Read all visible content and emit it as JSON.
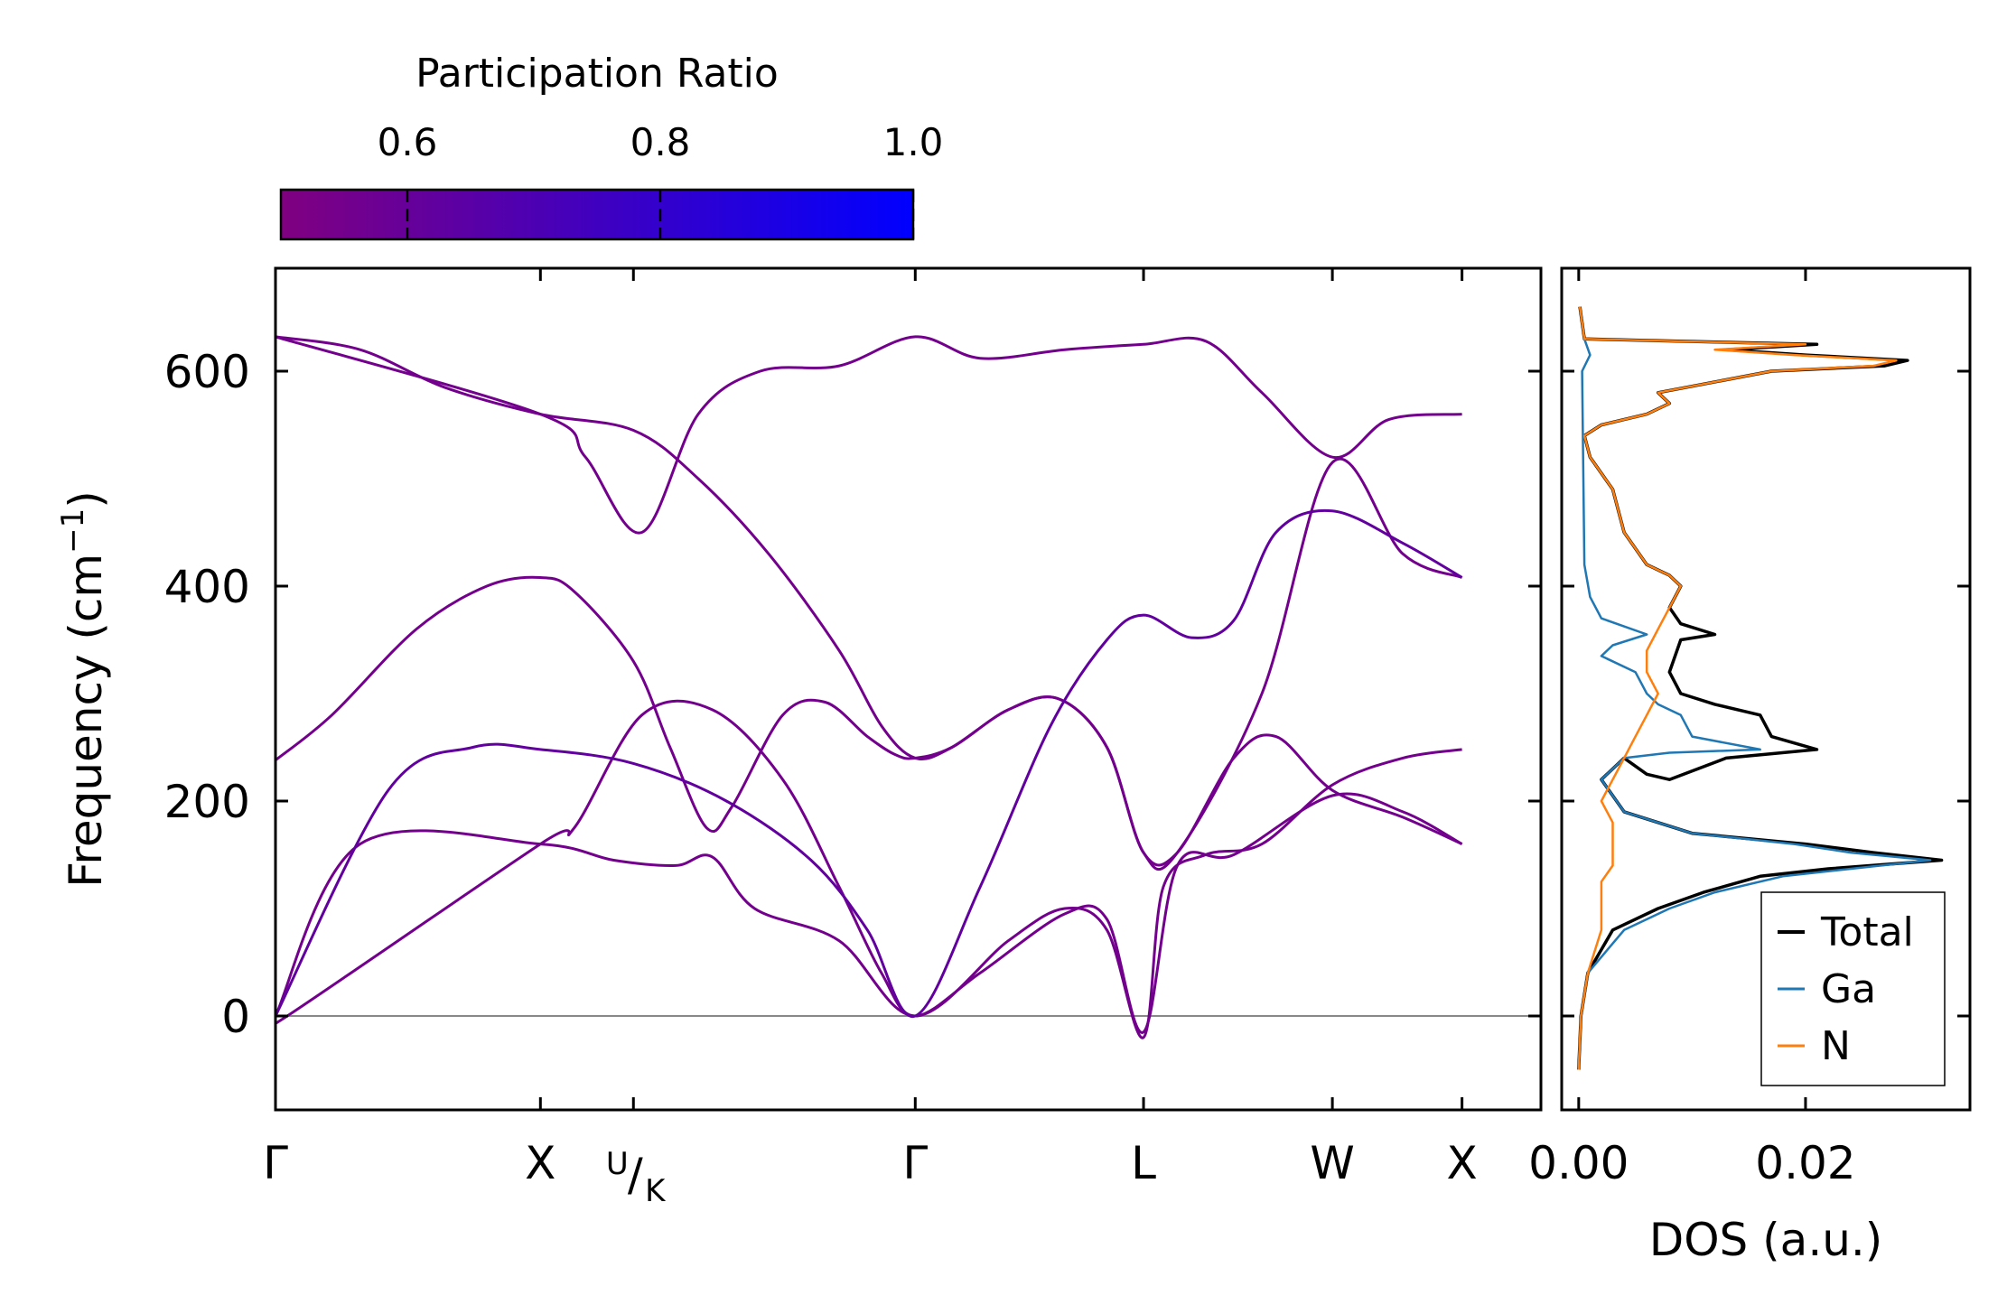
{
  "chart_data": [
    {
      "type": "line",
      "title": "",
      "xlabel": "",
      "ylabel": "Frequency (cm",
      "ylabel_unit_superscript": "−1",
      "ylabel_close": ")",
      "ylim": [
        -85,
        700
      ],
      "yticks": [
        0,
        200,
        400,
        600
      ],
      "ytick_labels": [
        "0",
        "200",
        "400",
        "600"
      ],
      "xlim": [
        0,
        4.49
      ],
      "high_symmetry_points": [
        {
          "label": "Γ",
          "x": 0
        },
        {
          "label": "X",
          "x": 0.94
        },
        {
          "label": "U",
          "label2": "K",
          "x": 1.27,
          "style": "split"
        },
        {
          "label": "Γ",
          "x": 2.27
        },
        {
          "label": "L",
          "x": 3.08
        },
        {
          "label": "W",
          "x": 3.75
        },
        {
          "label": "X",
          "x": 4.21
        }
      ],
      "zero_line": 0,
      "colorbar": {
        "title": "Participation Ratio",
        "range": [
          0.5,
          1.0
        ],
        "ticks": [
          0.6,
          0.8,
          1.0
        ],
        "tick_labels": [
          "0.6",
          "0.8",
          "1.0"
        ],
        "color_low": "#800080",
        "color_high": "#0000ff"
      },
      "bands": [
        {
          "pr": 0.55,
          "points": [
            [
              0,
              632
            ],
            [
              0.3,
              620
            ],
            [
              0.6,
              585
            ],
            [
              0.94,
              560
            ],
            [
              1.27,
              545
            ],
            [
              1.5,
              500
            ],
            [
              1.75,
              430
            ],
            [
              2.0,
              340
            ],
            [
              2.15,
              270
            ],
            [
              2.27,
              240
            ],
            [
              2.4,
              250
            ],
            [
              2.6,
              285
            ],
            [
              2.78,
              295
            ],
            [
              2.95,
              250
            ],
            [
              3.08,
              152
            ],
            [
              3.2,
              152
            ],
            [
              3.5,
              300
            ],
            [
              3.75,
              515
            ],
            [
              4.0,
              430
            ],
            [
              4.21,
              408
            ]
          ]
        },
        {
          "pr": 0.55,
          "points": [
            [
              0,
              238
            ],
            [
              0.2,
              280
            ],
            [
              0.5,
              360
            ],
            [
              0.75,
              400
            ],
            [
              0.94,
              408
            ],
            [
              1.06,
              395
            ],
            [
              1.27,
              330
            ],
            [
              1.4,
              250
            ],
            [
              1.53,
              175
            ],
            [
              1.62,
              195
            ],
            [
              1.8,
              280
            ],
            [
              1.95,
              292
            ],
            [
              2.1,
              260
            ],
            [
              2.2,
              243
            ],
            [
              2.27,
              240
            ],
            [
              2.4,
              250
            ],
            [
              2.6,
              285
            ],
            [
              2.78,
              295
            ],
            [
              2.95,
              250
            ],
            [
              3.08,
              152
            ],
            [
              3.2,
              152
            ],
            [
              3.4,
              240
            ],
            [
              3.55,
              260
            ],
            [
              3.75,
              210
            ],
            [
              4.0,
              185
            ],
            [
              4.21,
              160
            ]
          ]
        },
        {
          "pr": 0.55,
          "points": [
            [
              0,
              0
            ],
            [
              0.03,
              -2
            ],
            [
              0.94,
              160
            ],
            [
              1.06,
              175
            ],
            [
              1.3,
              280
            ],
            [
              1.55,
              285
            ],
            [
              1.8,
              220
            ],
            [
              2.0,
              120
            ],
            [
              2.15,
              40
            ],
            [
              2.27,
              0
            ],
            [
              2.5,
              40
            ],
            [
              2.8,
              95
            ],
            [
              2.95,
              90
            ],
            [
              3.08,
              -15
            ],
            [
              3.2,
              140
            ],
            [
              3.4,
              150
            ],
            [
              3.75,
              205
            ],
            [
              4.0,
              190
            ],
            [
              4.21,
              160
            ]
          ]
        },
        {
          "pr": 0.55,
          "points": [
            [
              0,
              0
            ],
            [
              0.3,
              160
            ],
            [
              0.94,
              160
            ],
            [
              1.2,
              145
            ],
            [
              1.42,
              140
            ],
            [
              1.55,
              148
            ],
            [
              1.7,
              100
            ],
            [
              2.0,
              70
            ],
            [
              2.27,
              0
            ],
            [
              2.6,
              70
            ],
            [
              2.8,
              100
            ],
            [
              2.95,
              80
            ],
            [
              3.08,
              -20
            ],
            [
              3.15,
              120
            ],
            [
              3.3,
              150
            ],
            [
              3.5,
              160
            ],
            [
              3.75,
              215
            ],
            [
              4.0,
              240
            ],
            [
              4.21,
              248
            ]
          ]
        },
        {
          "pr": 0.62,
          "points": [
            [
              0,
              0
            ],
            [
              0.4,
              210
            ],
            [
              0.7,
              250
            ],
            [
              0.94,
              248
            ],
            [
              1.27,
              235
            ],
            [
              1.6,
              200
            ],
            [
              1.9,
              145
            ],
            [
              2.1,
              80
            ],
            [
              2.27,
              0
            ],
            [
              2.5,
              120
            ],
            [
              2.75,
              270
            ],
            [
              2.95,
              350
            ],
            [
              3.08,
              373
            ],
            [
              3.25,
              352
            ],
            [
              3.4,
              368
            ],
            [
              3.55,
              450
            ],
            [
              3.75,
              470
            ],
            [
              4.0,
              440
            ],
            [
              4.21,
              408
            ]
          ]
        },
        {
          "pr": 0.55,
          "points": [
            [
              0,
              632
            ],
            [
              0.94,
              560
            ],
            [
              1.1,
              520
            ],
            [
              1.3,
              450
            ],
            [
              1.5,
              560
            ],
            [
              1.72,
              600
            ],
            [
              2.0,
              605
            ],
            [
              2.27,
              632
            ],
            [
              2.5,
              612
            ],
            [
              2.8,
              620
            ],
            [
              3.08,
              625
            ],
            [
              3.3,
              628
            ],
            [
              3.5,
              580
            ],
            [
              3.75,
              520
            ],
            [
              3.95,
              555
            ],
            [
              4.21,
              560
            ]
          ]
        }
      ]
    },
    {
      "type": "line",
      "title": "",
      "xlabel": "DOS (a.u.)",
      "ylabel": "",
      "xlim": [
        -0.0015,
        0.0345
      ],
      "ylim": [
        -85,
        700
      ],
      "xticks": [
        0.0,
        0.02
      ],
      "xtick_labels": [
        "0.00",
        "0.02"
      ],
      "legend_position": "bottom-right",
      "series": [
        {
          "name": "Total",
          "color": "#000000",
          "points": [
            [
              0,
              -50
            ],
            [
              0.0002,
              0
            ],
            [
              0.0008,
              40
            ],
            [
              0.003,
              80
            ],
            [
              0.007,
              100
            ],
            [
              0.011,
              115
            ],
            [
              0.016,
              130
            ],
            [
              0.022,
              137
            ],
            [
              0.032,
              145
            ],
            [
              0.026,
              152
            ],
            [
              0.02,
              160
            ],
            [
              0.01,
              170
            ],
            [
              0.004,
              190
            ],
            [
              0.002,
              220
            ],
            [
              0.004,
              240
            ],
            [
              0.006,
              225
            ],
            [
              0.008,
              220
            ],
            [
              0.013,
              240
            ],
            [
              0.021,
              248
            ],
            [
              0.017,
              260
            ],
            [
              0.016,
              280
            ],
            [
              0.012,
              290
            ],
            [
              0.009,
              300
            ],
            [
              0.008,
              320
            ],
            [
              0.009,
              350
            ],
            [
              0.012,
              355
            ],
            [
              0.009,
              365
            ],
            [
              0.008,
              380
            ],
            [
              0.009,
              400
            ],
            [
              0.008,
              410
            ],
            [
              0.006,
              420
            ],
            [
              0.004,
              450
            ],
            [
              0.003,
              490
            ],
            [
              0.001,
              520
            ],
            [
              0.0005,
              540
            ],
            [
              0.002,
              550
            ],
            [
              0.006,
              560
            ],
            [
              0.008,
              570
            ],
            [
              0.007,
              580
            ],
            [
              0.017,
              600
            ],
            [
              0.027,
              605
            ],
            [
              0.029,
              610
            ],
            [
              0.02,
              615
            ],
            [
              0.013,
              620
            ],
            [
              0.021,
              625
            ],
            [
              0.0005,
              630
            ],
            [
              0.0001,
              660
            ]
          ]
        },
        {
          "name": "Ga",
          "color": "#1f77b4",
          "points": [
            [
              0,
              -50
            ],
            [
              0.0002,
              0
            ],
            [
              0.0008,
              40
            ],
            [
              0.004,
              80
            ],
            [
              0.008,
              100
            ],
            [
              0.012,
              115
            ],
            [
              0.018,
              130
            ],
            [
              0.024,
              137
            ],
            [
              0.031,
              145
            ],
            [
              0.024,
              152
            ],
            [
              0.019,
              160
            ],
            [
              0.01,
              170
            ],
            [
              0.004,
              190
            ],
            [
              0.002,
              220
            ],
            [
              0.004,
              240
            ],
            [
              0.008,
              245
            ],
            [
              0.016,
              248
            ],
            [
              0.01,
              260
            ],
            [
              0.009,
              280
            ],
            [
              0.007,
              290
            ],
            [
              0.006,
              300
            ],
            [
              0.005,
              320
            ],
            [
              0.002,
              335
            ],
            [
              0.003,
              345
            ],
            [
              0.006,
              355
            ],
            [
              0.002,
              370
            ],
            [
              0.001,
              390
            ],
            [
              0.0005,
              420
            ],
            [
              0.0003,
              600
            ],
            [
              0.001,
              615
            ],
            [
              0.0005,
              630
            ],
            [
              0.0001,
              660
            ]
          ]
        },
        {
          "name": "N",
          "color": "#ff7f0e",
          "points": [
            [
              0,
              -50
            ],
            [
              0.0002,
              0
            ],
            [
              0.0008,
              40
            ],
            [
              0.002,
              80
            ],
            [
              0.002,
              110
            ],
            [
              0.002,
              125
            ],
            [
              0.003,
              140
            ],
            [
              0.003,
              160
            ],
            [
              0.003,
              180
            ],
            [
              0.002,
              200
            ],
            [
              0.003,
              220
            ],
            [
              0.004,
              240
            ],
            [
              0.005,
              260
            ],
            [
              0.006,
              280
            ],
            [
              0.007,
              300
            ],
            [
              0.006,
              320
            ],
            [
              0.006,
              340
            ],
            [
              0.007,
              360
            ],
            [
              0.008,
              380
            ],
            [
              0.009,
              400
            ],
            [
              0.008,
              410
            ],
            [
              0.006,
              420
            ],
            [
              0.004,
              450
            ],
            [
              0.003,
              490
            ],
            [
              0.001,
              520
            ],
            [
              0.0005,
              540
            ],
            [
              0.002,
              550
            ],
            [
              0.006,
              560
            ],
            [
              0.008,
              570
            ],
            [
              0.007,
              580
            ],
            [
              0.017,
              600
            ],
            [
              0.026,
              605
            ],
            [
              0.028,
              610
            ],
            [
              0.019,
              615
            ],
            [
              0.012,
              620
            ],
            [
              0.02,
              625
            ],
            [
              0.0005,
              630
            ],
            [
              0.0001,
              660
            ]
          ]
        }
      ]
    }
  ]
}
